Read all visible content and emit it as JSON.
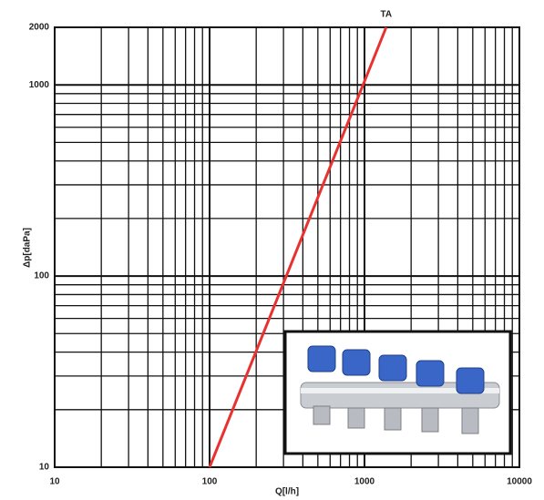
{
  "chart_data": {
    "type": "line",
    "xlabel": "Q[l/h]",
    "ylabel": "Δp[daPa]",
    "log_x": true,
    "log_y": true,
    "grid": true,
    "xlim": [
      10,
      10000
    ],
    "xticks": [
      10,
      100,
      1000,
      10000
    ],
    "ylim": [
      10,
      2000
    ],
    "yticks": [
      10,
      100,
      1000,
      2000
    ],
    "series": [
      {
        "name": "TA",
        "color": "#e8322f",
        "x": [
          100,
          1380
        ],
        "values": [
          10,
          2000
        ]
      }
    ]
  }
}
